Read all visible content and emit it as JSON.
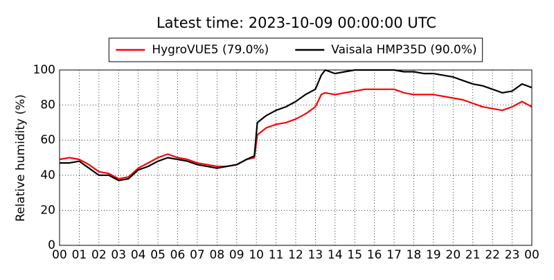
{
  "chart_data": {
    "type": "line",
    "title": "Latest time: 2023-10-09 00:00:00 UTC",
    "ylabel": "Relative humidity (%)",
    "x": [
      0,
      0.5,
      1,
      1.5,
      2,
      2.5,
      3,
      3.5,
      4,
      4.5,
      5,
      5.5,
      6,
      6.5,
      7,
      7.5,
      8,
      8.5,
      9,
      9.5,
      9.9,
      10.05,
      10.5,
      11,
      11.5,
      12,
      12.5,
      13,
      13.3,
      13.5,
      14,
      14.5,
      15,
      15.5,
      16,
      16.5,
      17,
      17.5,
      18,
      18.5,
      19,
      19.5,
      20,
      20.5,
      21,
      21.5,
      22,
      22.5,
      23,
      23.5,
      24
    ],
    "series": [
      {
        "name": "HygroVUE5 (79.0%)",
        "color": "#ff0000",
        "values": [
          49,
          50,
          49,
          46,
          42,
          41,
          38,
          39,
          44,
          47,
          50,
          52,
          50,
          49,
          47,
          46,
          45,
          45,
          46,
          49,
          50,
          63,
          67,
          69,
          70,
          72,
          75,
          79,
          86,
          87,
          86,
          87,
          88,
          89,
          89,
          89,
          89,
          87,
          86,
          86,
          86,
          85,
          84,
          83,
          81,
          79,
          78,
          77,
          79,
          82,
          79
        ]
      },
      {
        "name": "Vaisala HMP35D (90.0%)",
        "color": "#000000",
        "values": [
          47,
          47,
          48,
          44,
          40,
          40,
          37,
          38,
          43,
          45,
          48,
          50,
          49,
          48,
          46,
          45,
          44,
          45,
          46,
          49,
          51,
          70,
          74,
          77,
          79,
          82,
          86,
          89,
          97,
          100,
          98,
          99,
          100,
          100,
          100,
          100,
          100,
          99,
          99,
          98,
          98,
          97,
          96,
          94,
          92,
          91,
          89,
          87,
          88,
          92,
          90
        ]
      }
    ],
    "xlim": [
      0,
      24
    ],
    "xticks": [
      {
        "value": 0,
        "label": "00"
      },
      {
        "value": 1,
        "label": "01"
      },
      {
        "value": 2,
        "label": "02"
      },
      {
        "value": 3,
        "label": "03"
      },
      {
        "value": 4,
        "label": "04"
      },
      {
        "value": 5,
        "label": "05"
      },
      {
        "value": 6,
        "label": "06"
      },
      {
        "value": 7,
        "label": "07"
      },
      {
        "value": 8,
        "label": "08"
      },
      {
        "value": 9,
        "label": "09"
      },
      {
        "value": 10,
        "label": "10"
      },
      {
        "value": 11,
        "label": "11"
      },
      {
        "value": 12,
        "label": "12"
      },
      {
        "value": 13,
        "label": "13"
      },
      {
        "value": 14,
        "label": "14"
      },
      {
        "value": 15,
        "label": "15"
      },
      {
        "value": 16,
        "label": "16"
      },
      {
        "value": 17,
        "label": "17"
      },
      {
        "value": 18,
        "label": "18"
      },
      {
        "value": 19,
        "label": "19"
      },
      {
        "value": 20,
        "label": "20"
      },
      {
        "value": 21,
        "label": "21"
      },
      {
        "value": 22,
        "label": "22"
      },
      {
        "value": 23,
        "label": "23"
      },
      {
        "value": 24,
        "label": "00"
      }
    ],
    "ylim": [
      0,
      100
    ],
    "yticks": [
      0,
      20,
      40,
      60,
      80,
      100
    ],
    "grid": true,
    "legend": "upper center"
  }
}
